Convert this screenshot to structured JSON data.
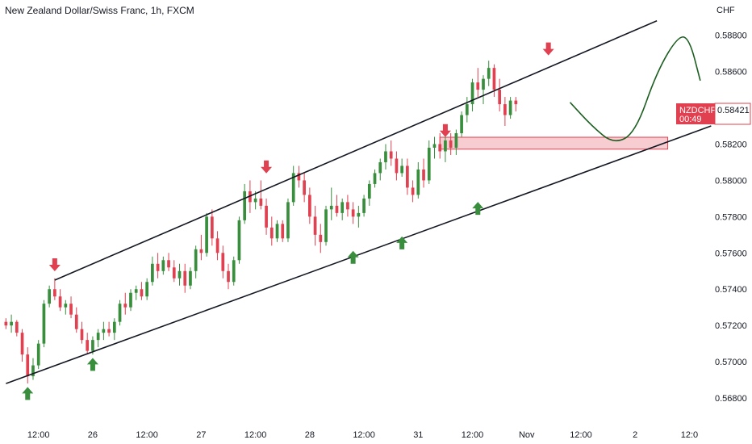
{
  "chart_data": {
    "type": "candlestick",
    "title": "New Zealand Dollar/Swiss Franc, 1h, FXCM",
    "symbol": "NZDCHF",
    "price_label": "0.58421",
    "countdown": "00:49",
    "currency_label": "CHF",
    "ylim": [
      0.5668,
      0.5895
    ],
    "y_ticks": [
      "0.58800",
      "0.58600",
      "0.58400",
      "0.58200",
      "0.58000",
      "0.57800",
      "0.57600",
      "0.57400",
      "0.57200",
      "0.57000",
      "0.56800"
    ],
    "y_tick_values": [
      0.588,
      0.586,
      0.584,
      0.582,
      0.58,
      0.578,
      0.576,
      0.574,
      0.572,
      0.57,
      0.568
    ],
    "x_ticks": [
      "12:00",
      "26",
      "12:00",
      "27",
      "12:00",
      "28",
      "12:00",
      "31",
      "12:00",
      "Nov",
      "12:00",
      "2",
      "12:0"
    ],
    "x_tick_index": [
      6,
      16,
      26,
      36,
      46,
      56,
      66,
      76,
      86,
      96,
      106,
      116,
      126
    ],
    "x_count": 130,
    "candles": [
      [
        0.5722,
        0.5724,
        0.5718,
        0.572
      ],
      [
        0.572,
        0.5726,
        0.5716,
        0.5722
      ],
      [
        0.5722,
        0.5723,
        0.5714,
        0.5716
      ],
      [
        0.5716,
        0.5718,
        0.57,
        0.5704
      ],
      [
        0.5704,
        0.5708,
        0.5688,
        0.5692
      ],
      [
        0.5692,
        0.5702,
        0.569,
        0.5698
      ],
      [
        0.5698,
        0.5712,
        0.5696,
        0.571
      ],
      [
        0.571,
        0.5734,
        0.5708,
        0.5732
      ],
      [
        0.5732,
        0.5742,
        0.573,
        0.574
      ],
      [
        0.574,
        0.5746,
        0.5734,
        0.5736
      ],
      [
        0.5736,
        0.574,
        0.5728,
        0.573
      ],
      [
        0.573,
        0.5734,
        0.5726,
        0.5732
      ],
      [
        0.5732,
        0.5736,
        0.5724,
        0.5726
      ],
      [
        0.5726,
        0.573,
        0.5716,
        0.5718
      ],
      [
        0.5718,
        0.5722,
        0.571,
        0.5712
      ],
      [
        0.5712,
        0.5716,
        0.5704,
        0.5706
      ],
      [
        0.5706,
        0.5714,
        0.5704,
        0.5712
      ],
      [
        0.5712,
        0.5718,
        0.5708,
        0.5716
      ],
      [
        0.5716,
        0.5722,
        0.5712,
        0.5718
      ],
      [
        0.5718,
        0.5722,
        0.5714,
        0.5716
      ],
      [
        0.5716,
        0.5724,
        0.5712,
        0.5722
      ],
      [
        0.5722,
        0.5734,
        0.572,
        0.5732
      ],
      [
        0.5732,
        0.5738,
        0.5726,
        0.573
      ],
      [
        0.573,
        0.574,
        0.5728,
        0.5738
      ],
      [
        0.5738,
        0.5742,
        0.5734,
        0.574
      ],
      [
        0.574,
        0.5744,
        0.5734,
        0.5736
      ],
      [
        0.5736,
        0.5746,
        0.5734,
        0.5744
      ],
      [
        0.5744,
        0.5758,
        0.5742,
        0.5754
      ],
      [
        0.5754,
        0.576,
        0.5746,
        0.575
      ],
      [
        0.575,
        0.5758,
        0.5748,
        0.5756
      ],
      [
        0.5756,
        0.576,
        0.575,
        0.5752
      ],
      [
        0.5752,
        0.5756,
        0.5744,
        0.5746
      ],
      [
        0.5746,
        0.5754,
        0.5742,
        0.575
      ],
      [
        0.575,
        0.5754,
        0.5738,
        0.5742
      ],
      [
        0.5742,
        0.5752,
        0.574,
        0.575
      ],
      [
        0.575,
        0.5764,
        0.5746,
        0.5762
      ],
      [
        0.5762,
        0.577,
        0.5756,
        0.576
      ],
      [
        0.576,
        0.5782,
        0.5758,
        0.578
      ],
      [
        0.578,
        0.5784,
        0.5764,
        0.5768
      ],
      [
        0.5768,
        0.5772,
        0.5756,
        0.576
      ],
      [
        0.576,
        0.5764,
        0.5746,
        0.575
      ],
      [
        0.575,
        0.5754,
        0.574,
        0.5744
      ],
      [
        0.5744,
        0.5758,
        0.5742,
        0.5756
      ],
      [
        0.5756,
        0.578,
        0.5754,
        0.5778
      ],
      [
        0.5778,
        0.5798,
        0.5776,
        0.5794
      ],
      [
        0.5794,
        0.58,
        0.5782,
        0.5788
      ],
      [
        0.5788,
        0.5794,
        0.5784,
        0.579
      ],
      [
        0.579,
        0.58,
        0.5784,
        0.5786
      ],
      [
        0.5786,
        0.579,
        0.577,
        0.5774
      ],
      [
        0.5774,
        0.578,
        0.5764,
        0.5768
      ],
      [
        0.5768,
        0.5778,
        0.5766,
        0.5776
      ],
      [
        0.5776,
        0.5778,
        0.5766,
        0.5768
      ],
      [
        0.5768,
        0.579,
        0.5766,
        0.5788
      ],
      [
        0.5788,
        0.5808,
        0.5786,
        0.5804
      ],
      [
        0.5804,
        0.5808,
        0.5796,
        0.58
      ],
      [
        0.58,
        0.5804,
        0.5788,
        0.5792
      ],
      [
        0.5792,
        0.5796,
        0.5776,
        0.578
      ],
      [
        0.578,
        0.5786,
        0.5764,
        0.577
      ],
      [
        0.577,
        0.5776,
        0.576,
        0.5766
      ],
      [
        0.5766,
        0.5786,
        0.5764,
        0.5784
      ],
      [
        0.5784,
        0.5796,
        0.5778,
        0.5786
      ],
      [
        0.5786,
        0.5792,
        0.578,
        0.5782
      ],
      [
        0.5782,
        0.579,
        0.5778,
        0.5788
      ],
      [
        0.5788,
        0.5792,
        0.578,
        0.5784
      ],
      [
        0.5784,
        0.5788,
        0.5776,
        0.578
      ],
      [
        0.578,
        0.5786,
        0.5774,
        0.5782
      ],
      [
        0.5782,
        0.5792,
        0.578,
        0.579
      ],
      [
        0.579,
        0.58,
        0.5786,
        0.5798
      ],
      [
        0.5798,
        0.5806,
        0.5796,
        0.5804
      ],
      [
        0.5804,
        0.5812,
        0.58,
        0.581
      ],
      [
        0.581,
        0.582,
        0.5806,
        0.5816
      ],
      [
        0.5816,
        0.5822,
        0.5808,
        0.5812
      ],
      [
        0.5812,
        0.5816,
        0.58,
        0.5804
      ],
      [
        0.5804,
        0.5812,
        0.5802,
        0.5808
      ],
      [
        0.5808,
        0.5812,
        0.5792,
        0.5796
      ],
      [
        0.5796,
        0.58,
        0.5788,
        0.5792
      ],
      [
        0.5792,
        0.581,
        0.579,
        0.5806
      ],
      [
        0.5806,
        0.5812,
        0.5796,
        0.58
      ],
      [
        0.58,
        0.5822,
        0.5798,
        0.5818
      ],
      [
        0.5818,
        0.5824,
        0.5812,
        0.582
      ],
      [
        0.582,
        0.5826,
        0.5812,
        0.5816
      ],
      [
        0.5816,
        0.5824,
        0.581,
        0.5822
      ],
      [
        0.5822,
        0.5826,
        0.5814,
        0.5818
      ],
      [
        0.5818,
        0.5828,
        0.5814,
        0.5826
      ],
      [
        0.5826,
        0.5838,
        0.5824,
        0.5836
      ],
      [
        0.5836,
        0.5846,
        0.5832,
        0.5842
      ],
      [
        0.5842,
        0.5856,
        0.5838,
        0.5854
      ],
      [
        0.5854,
        0.5862,
        0.5846,
        0.585
      ],
      [
        0.585,
        0.5858,
        0.5842,
        0.5856
      ],
      [
        0.5856,
        0.5866,
        0.5852,
        0.5862
      ],
      [
        0.5862,
        0.5864,
        0.5846,
        0.585
      ],
      [
        0.585,
        0.5856,
        0.5838,
        0.5842
      ],
      [
        0.5842,
        0.5846,
        0.583,
        0.5836
      ],
      [
        0.5836,
        0.5846,
        0.5834,
        0.5844
      ],
      [
        0.5844,
        0.5846,
        0.5838,
        0.5842
      ]
    ],
    "channel_upper": [
      [
        9,
        0.5745
      ],
      [
        120,
        0.5888
      ]
    ],
    "channel_lower": [
      [
        0,
        0.5688
      ],
      [
        130,
        0.583
      ]
    ],
    "support_zone": {
      "x_start": 80,
      "x_end": 122,
      "y_low": 0.5819,
      "y_high": 0.5822
    },
    "down_arrows": [
      [
        9,
        0.5749
      ],
      [
        48,
        0.5803
      ],
      [
        81,
        0.5823
      ],
      [
        100,
        0.5868
      ]
    ],
    "up_arrows": [
      [
        4,
        0.5687
      ],
      [
        16,
        0.5703
      ],
      [
        64,
        0.5762
      ],
      [
        73,
        0.577
      ],
      [
        87,
        0.5789
      ]
    ],
    "projection": [
      [
        104,
        0.5843
      ],
      [
        108,
        0.583
      ],
      [
        112,
        0.582
      ],
      [
        116,
        0.5826
      ],
      [
        120,
        0.586
      ],
      [
        124,
        0.588
      ],
      [
        126,
        0.5878
      ],
      [
        128,
        0.5855
      ]
    ],
    "colors": {
      "up": "#388e3c",
      "down": "#e0404f",
      "line": "#131722",
      "projection": "#1b5e20",
      "zone": "#f8cdd2",
      "zone_border": "#e0404f",
      "badge": "#e0404f"
    }
  }
}
